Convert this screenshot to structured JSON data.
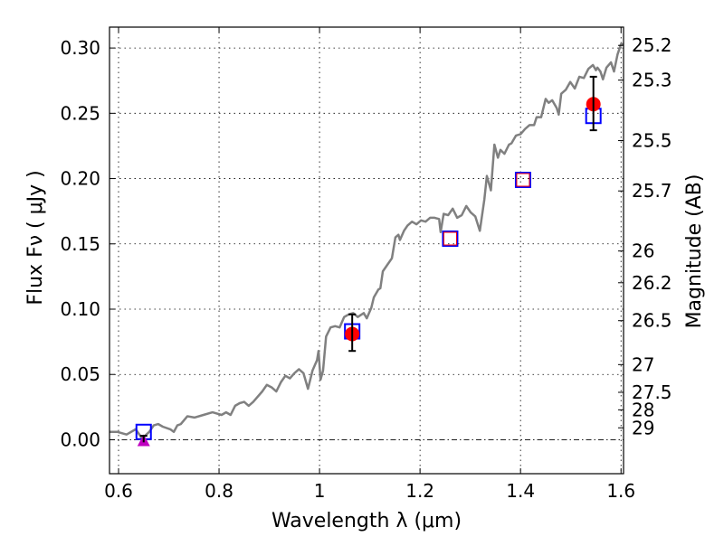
{
  "chart_data": {
    "type": "line",
    "xlabel": "Wavelength  λ (μm)",
    "ylabel": "Flux  Fν  ( μJy )",
    "ylabel_right": "Magnitude (AB)",
    "xlim": [
      0.582,
      1.605
    ],
    "ylim": [
      -0.026,
      0.316
    ],
    "grid": true,
    "x_ticks": [
      0.6,
      0.8,
      1.0,
      1.2,
      1.4,
      1.6
    ],
    "x_tick_labels": [
      "0.6",
      "0.8",
      "1",
      "1.2",
      "1.4",
      "1.6"
    ],
    "y_ticks": [
      0.0,
      0.05,
      0.1,
      0.15,
      0.2,
      0.25,
      0.3
    ],
    "y_tick_labels": [
      "0.00",
      "0.05",
      "0.10",
      "0.15",
      "0.20",
      "0.25",
      "0.30"
    ],
    "right_ticks_mag": [
      25.2,
      25.3,
      25.5,
      25.7,
      26,
      26.2,
      26.5,
      27,
      27.5,
      28,
      29
    ],
    "right_tick_labels": [
      "25.2",
      "25.3",
      "25.5",
      "25.7",
      "26",
      "26.2",
      "26.5",
      "27",
      "27.5",
      "28",
      "29"
    ],
    "ab_zeropoint_ujy": 23.9,
    "colors": {
      "spectrum": "#808080",
      "model_box": "#0000ff",
      "observed": "#ff0000",
      "upper": "#bf00bf",
      "error": "#000000"
    },
    "series": [
      {
        "name": "spectrum",
        "x": [
          0.582,
          0.598,
          0.616,
          0.634,
          0.647,
          0.661,
          0.67,
          0.679,
          0.688,
          0.703,
          0.71,
          0.717,
          0.724,
          0.737,
          0.751,
          0.769,
          0.787,
          0.805,
          0.814,
          0.823,
          0.832,
          0.841,
          0.85,
          0.859,
          0.868,
          0.886,
          0.895,
          0.905,
          0.914,
          0.923,
          0.932,
          0.941,
          0.95,
          0.959,
          0.968,
          0.977,
          0.986,
          0.995,
          0.998,
          1.002,
          1.007,
          1.013,
          1.022,
          1.031,
          1.04,
          1.049,
          1.058,
          1.067,
          1.076,
          1.088,
          1.094,
          1.103,
          1.108,
          1.117,
          1.121,
          1.126,
          1.135,
          1.144,
          1.151,
          1.157,
          1.16,
          1.168,
          1.175,
          1.184,
          1.193,
          1.202,
          1.211,
          1.22,
          1.229,
          1.238,
          1.241,
          1.247,
          1.256,
          1.265,
          1.274,
          1.283,
          1.292,
          1.301,
          1.31,
          1.319,
          1.328,
          1.333,
          1.341,
          1.348,
          1.355,
          1.36,
          1.368,
          1.377,
          1.382,
          1.391,
          1.4,
          1.409,
          1.418,
          1.427,
          1.432,
          1.441,
          1.45,
          1.456,
          1.463,
          1.472,
          1.476,
          1.481,
          1.49,
          1.499,
          1.508,
          1.517,
          1.526,
          1.535,
          1.544,
          1.55,
          1.553,
          1.559,
          1.564,
          1.571,
          1.58,
          1.586,
          1.593,
          1.6,
          1.605
        ],
        "y": [
          0.006,
          0.006,
          0.004,
          0.008,
          0.001,
          0.006,
          0.011,
          0.012,
          0.01,
          0.008,
          0.006,
          0.011,
          0.012,
          0.018,
          0.017,
          0.019,
          0.021,
          0.019,
          0.021,
          0.019,
          0.026,
          0.028,
          0.029,
          0.026,
          0.029,
          0.037,
          0.042,
          0.04,
          0.037,
          0.044,
          0.049,
          0.047,
          0.051,
          0.054,
          0.051,
          0.039,
          0.053,
          0.061,
          0.068,
          0.046,
          0.053,
          0.079,
          0.086,
          0.087,
          0.086,
          0.094,
          0.096,
          0.097,
          0.094,
          0.097,
          0.093,
          0.101,
          0.109,
          0.115,
          0.116,
          0.129,
          0.134,
          0.139,
          0.155,
          0.157,
          0.153,
          0.16,
          0.164,
          0.167,
          0.165,
          0.168,
          0.167,
          0.17,
          0.17,
          0.169,
          0.159,
          0.173,
          0.172,
          0.177,
          0.17,
          0.172,
          0.179,
          0.174,
          0.171,
          0.16,
          0.184,
          0.202,
          0.191,
          0.226,
          0.216,
          0.222,
          0.219,
          0.226,
          0.227,
          0.233,
          0.234,
          0.238,
          0.241,
          0.241,
          0.247,
          0.247,
          0.261,
          0.258,
          0.26,
          0.254,
          0.249,
          0.265,
          0.268,
          0.274,
          0.269,
          0.278,
          0.277,
          0.284,
          0.287,
          0.283,
          0.285,
          0.282,
          0.276,
          0.285,
          0.289,
          0.282,
          0.295,
          0.303,
          0.303
        ]
      },
      {
        "name": "model-photometry",
        "marker": "open-square",
        "x": [
          0.65,
          1.065,
          1.26,
          1.405,
          1.545
        ],
        "y": [
          0.006,
          0.083,
          0.154,
          0.199,
          0.248
        ]
      },
      {
        "name": "observed-detections",
        "marker": "circle",
        "x": [
          1.065,
          1.545
        ],
        "y": [
          0.081,
          0.257
        ],
        "yerr_low": [
          0.068,
          0.237
        ],
        "yerr_high": [
          0.096,
          0.278
        ]
      },
      {
        "name": "observed-small",
        "marker": "small-open-square",
        "x": [
          1.26,
          1.405
        ],
        "y": [
          0.154,
          0.199
        ]
      },
      {
        "name": "upper-limit",
        "marker": "triangle",
        "x": [
          0.65
        ],
        "y": [
          0.0
        ],
        "yerr_low": [
          -0.002
        ],
        "yerr_high": [
          0.003
        ]
      }
    ]
  }
}
